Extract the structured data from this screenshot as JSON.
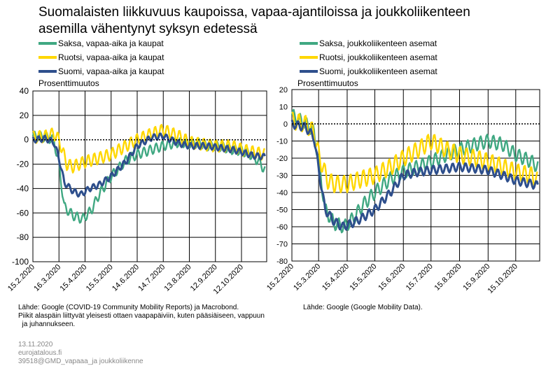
{
  "title_line1": "Suomalaisten liikkuvuus kaupoissa, vapaa-ajantiloissa ja joukkoliikenteen",
  "title_line2": "asemilla vähentynyt syksyn edetessä",
  "colors": {
    "saksa": "#40a882",
    "ruotsi": "#ffd700",
    "suomi": "#2e4f8c"
  },
  "legend_left": [
    {
      "label": "Saksa, vapaa-aika ja kaupat",
      "series": "saksa"
    },
    {
      "label": "Ruotsi, vapaa-aika ja kaupat",
      "series": "ruotsi"
    },
    {
      "label": "Suomi, vapaa-aika ja kaupat",
      "series": "suomi"
    }
  ],
  "legend_right": [
    {
      "label": "Saksa, joukkoliikenteen asemat",
      "series": "saksa"
    },
    {
      "label": "Ruotsi, joukkoliikenteen asemat",
      "series": "ruotsi"
    },
    {
      "label": "Suomi, joukkoliikenteen asemat",
      "series": "suomi"
    }
  ],
  "source_left": [
    "Lähde: Google (COVID-19 Community Mobility Reports) ja Macrobond.",
    "Piikit alaspäin liittyvät yleisesti ottaen vaapapäiviin, kuten pääsiäiseen, vappuun",
    "  ja juhannukseen."
  ],
  "source_right": "Lähde: Google (Google Mobility Data).",
  "meta": [
    "13.11.2020",
    "eurojatalous.fi",
    "39518@GMD_vapaaa_ja joukkoliikenne"
  ],
  "chart_data": [
    {
      "type": "line",
      "ylabel": "Prosenttimuutos",
      "ylim": [
        -100,
        40
      ],
      "yticks": [
        40,
        20,
        0,
        -20,
        -40,
        -60,
        -80,
        -100
      ],
      "xlim": [
        "2020-02-15",
        "2020-11-10"
      ],
      "xticks": [
        "15.2.2020",
        "16.3.2020",
        "15.4.2020",
        "15.5.2020",
        "14.6.2020",
        "14.7.2020",
        "13.8.2020",
        "12.9.2020",
        "12.10.2020"
      ],
      "xtick_dates": [
        "2020-02-15",
        "2020-03-16",
        "2020-04-15",
        "2020-05-15",
        "2020-06-14",
        "2020-07-14",
        "2020-08-13",
        "2020-09-12",
        "2020-10-12"
      ],
      "grid": true,
      "zero_line": "dotted",
      "series": [
        {
          "name": "Saksa, vapaa-aika ja kaupat",
          "color": "#40a882",
          "x": [
            "2020-02-15",
            "2020-03-01",
            "2020-03-10",
            "2020-03-16",
            "2020-03-22",
            "2020-04-01",
            "2020-04-12",
            "2020-04-22",
            "2020-05-01",
            "2020-05-15",
            "2020-06-01",
            "2020-06-14",
            "2020-07-01",
            "2020-07-14",
            "2020-08-01",
            "2020-08-13",
            "2020-08-25",
            "2020-09-01",
            "2020-09-12",
            "2020-09-20",
            "2020-10-01",
            "2020-10-12",
            "2020-10-22",
            "2020-11-01",
            "2020-11-08"
          ],
          "y": [
            3,
            2,
            0,
            -20,
            -55,
            -62,
            -65,
            -58,
            -45,
            -30,
            -17,
            -12,
            -8,
            -5,
            -2,
            -3,
            -3,
            -5,
            -5,
            -6,
            -8,
            -9,
            -12,
            -18,
            -25
          ]
        },
        {
          "name": "Ruotsi, vapaa-aika ja kaupat",
          "color": "#ffd700",
          "x": [
            "2020-02-15",
            "2020-03-01",
            "2020-03-10",
            "2020-03-16",
            "2020-03-25",
            "2020-04-01",
            "2020-04-15",
            "2020-05-01",
            "2020-05-15",
            "2020-06-01",
            "2020-06-14",
            "2020-07-01",
            "2020-07-14",
            "2020-08-01",
            "2020-08-13",
            "2020-09-01",
            "2020-09-12",
            "2020-10-01",
            "2020-10-12",
            "2020-10-25",
            "2020-11-08"
          ],
          "y": [
            2,
            3,
            5,
            0,
            -20,
            -22,
            -18,
            -15,
            -12,
            -5,
            0,
            5,
            8,
            3,
            -2,
            -4,
            -5,
            -5,
            -8,
            -10,
            -12
          ]
        },
        {
          "name": "Suomi, vapaa-aika ja kaupat",
          "color": "#2e4f8c",
          "x": [
            "2020-02-15",
            "2020-03-01",
            "2020-03-10",
            "2020-03-16",
            "2020-03-22",
            "2020-04-01",
            "2020-04-10",
            "2020-04-20",
            "2020-05-01",
            "2020-05-15",
            "2020-06-01",
            "2020-06-14",
            "2020-07-01",
            "2020-07-14",
            "2020-08-01",
            "2020-08-13",
            "2020-09-01",
            "2020-09-12",
            "2020-10-01",
            "2020-10-12",
            "2020-10-25",
            "2020-11-08"
          ],
          "y": [
            0,
            1,
            -2,
            -15,
            -35,
            -42,
            -45,
            -40,
            -37,
            -30,
            -18,
            -5,
            2,
            3,
            -3,
            -5,
            -5,
            -6,
            -8,
            -10,
            -13,
            -14
          ]
        }
      ]
    },
    {
      "type": "line",
      "ylabel": "Prosenttimuutos",
      "ylim": [
        -80,
        20
      ],
      "yticks": [
        20,
        10,
        0,
        -10,
        -20,
        -30,
        -40,
        -50,
        -60,
        -70,
        -80
      ],
      "xlim": [
        "2020-02-15",
        "2020-11-10"
      ],
      "xticks": [
        "15.2.2020",
        "15.3.2020",
        "15.4.2020",
        "15.5.2020",
        "15.6.2020",
        "15.7.2020",
        "15.8.2020",
        "15.9.2020",
        "15.10.2020"
      ],
      "xtick_dates": [
        "2020-02-15",
        "2020-03-15",
        "2020-04-15",
        "2020-05-15",
        "2020-06-15",
        "2020-07-15",
        "2020-08-15",
        "2020-09-15",
        "2020-10-15"
      ],
      "grid": true,
      "zero_line": "dotted",
      "series": [
        {
          "name": "Saksa, joukkoliikenteen asemat",
          "color": "#40a882",
          "x": [
            "2020-02-15",
            "2020-03-01",
            "2020-03-10",
            "2020-03-16",
            "2020-03-22",
            "2020-04-01",
            "2020-04-12",
            "2020-04-22",
            "2020-05-01",
            "2020-05-15",
            "2020-06-01",
            "2020-06-15",
            "2020-07-01",
            "2020-07-15",
            "2020-08-01",
            "2020-08-15",
            "2020-09-01",
            "2020-09-15",
            "2020-10-01",
            "2020-10-15",
            "2020-11-01",
            "2020-11-08"
          ],
          "y": [
            5,
            0,
            -5,
            -25,
            -50,
            -58,
            -60,
            -55,
            -48,
            -40,
            -32,
            -28,
            -25,
            -22,
            -18,
            -15,
            -12,
            -10,
            -12,
            -18,
            -22,
            -25
          ]
        },
        {
          "name": "Ruotsi, joukkoliikenteen asemat",
          "color": "#ffd700",
          "x": [
            "2020-02-15",
            "2020-03-01",
            "2020-03-10",
            "2020-03-16",
            "2020-03-25",
            "2020-04-01",
            "2020-04-15",
            "2020-05-01",
            "2020-05-15",
            "2020-06-01",
            "2020-06-15",
            "2020-07-01",
            "2020-07-15",
            "2020-08-01",
            "2020-08-15",
            "2020-09-01",
            "2020-09-15",
            "2020-10-01",
            "2020-10-15",
            "2020-11-01",
            "2020-11-08"
          ],
          "y": [
            2,
            0,
            -5,
            -20,
            -33,
            -35,
            -35,
            -32,
            -30,
            -25,
            -20,
            -15,
            -10,
            -15,
            -18,
            -20,
            -22,
            -25,
            -28,
            -30,
            -33
          ]
        },
        {
          "name": "Suomi, joukkoliikenteen asemat",
          "color": "#2e4f8c",
          "x": [
            "2020-02-15",
            "2020-03-01",
            "2020-03-10",
            "2020-03-16",
            "2020-03-22",
            "2020-04-01",
            "2020-04-10",
            "2020-04-20",
            "2020-05-01",
            "2020-05-15",
            "2020-06-01",
            "2020-06-15",
            "2020-07-01",
            "2020-07-15",
            "2020-08-01",
            "2020-08-15",
            "2020-09-01",
            "2020-09-15",
            "2020-10-01",
            "2020-10-15",
            "2020-11-01",
            "2020-11-08"
          ],
          "y": [
            0,
            -2,
            -8,
            -30,
            -50,
            -57,
            -60,
            -58,
            -55,
            -50,
            -40,
            -30,
            -28,
            -27,
            -26,
            -25,
            -26,
            -27,
            -30,
            -33,
            -35,
            -36
          ]
        }
      ]
    }
  ]
}
